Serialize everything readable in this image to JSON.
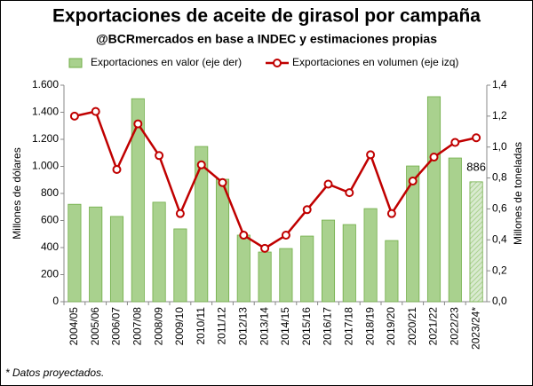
{
  "chart_data": {
    "type": "bar_line",
    "title": "Exportaciones de aceite de girasol por campaña",
    "subtitle": "@BCRmercados en base a INDEC y estimaciones propias",
    "y_label": "Millones de dólares",
    "y2_label": "Millones de toneladas",
    "footnote": "* Datos proyectados.",
    "categories": [
      "2004/05",
      "2005/06",
      "2006/07",
      "2007/08",
      "2008/09",
      "2009/10",
      "2010/11",
      "2011/12",
      "2012/13",
      "2013/14",
      "2014/15",
      "2015/16",
      "2016/17",
      "2017/18",
      "2018/19",
      "2019/20",
      "2020/21",
      "2021/22",
      "2022/23",
      "2023/24*"
    ],
    "series": [
      {
        "name": "Exportaciones en valor (eje der)",
        "type": "bar",
        "color": "#a9d18e",
        "axis": "y",
        "values": [
          720,
          700,
          630,
          1500,
          735,
          538,
          1147,
          905,
          492,
          367,
          393,
          485,
          603,
          570,
          688,
          452,
          1003,
          1515,
          1062,
          886
        ],
        "value_labels": [
          null,
          null,
          null,
          null,
          null,
          null,
          null,
          null,
          null,
          null,
          null,
          null,
          null,
          null,
          null,
          null,
          null,
          null,
          null,
          "886"
        ]
      },
      {
        "name": "Exportaciones en volumen (eje izq)",
        "type": "line",
        "color": "#c00000",
        "axis": "y2",
        "values": [
          1.2,
          1.23,
          0.855,
          1.15,
          0.945,
          0.57,
          0.885,
          0.77,
          0.43,
          0.345,
          0.43,
          0.595,
          0.76,
          0.705,
          0.95,
          0.57,
          0.78,
          0.935,
          1.03,
          1.06
        ]
      }
    ],
    "ylim": [
      0,
      1600
    ],
    "yticks": [
      0,
      200,
      400,
      600,
      800,
      {
        "value": 1000,
        "label": "1.000"
      },
      {
        "value": 1200,
        "label": "1.200"
      },
      {
        "value": 1400,
        "label": "1.400"
      },
      {
        "value": 1600,
        "label": "1.600"
      }
    ],
    "y2lim": [
      0,
      1.4
    ],
    "y2ticks": [
      {
        "value": 0,
        "label": "0,0"
      },
      {
        "value": 0.2,
        "label": "0,2"
      },
      {
        "value": 0.4,
        "label": "0,4"
      },
      {
        "value": 0.6,
        "label": "0,6"
      },
      {
        "value": 0.8,
        "label": "0,8"
      },
      {
        "value": 1.0,
        "label": "1,0"
      },
      {
        "value": 1.2,
        "label": "1,2"
      },
      {
        "value": 1.4,
        "label": "1,4"
      }
    ],
    "legend": "top"
  }
}
